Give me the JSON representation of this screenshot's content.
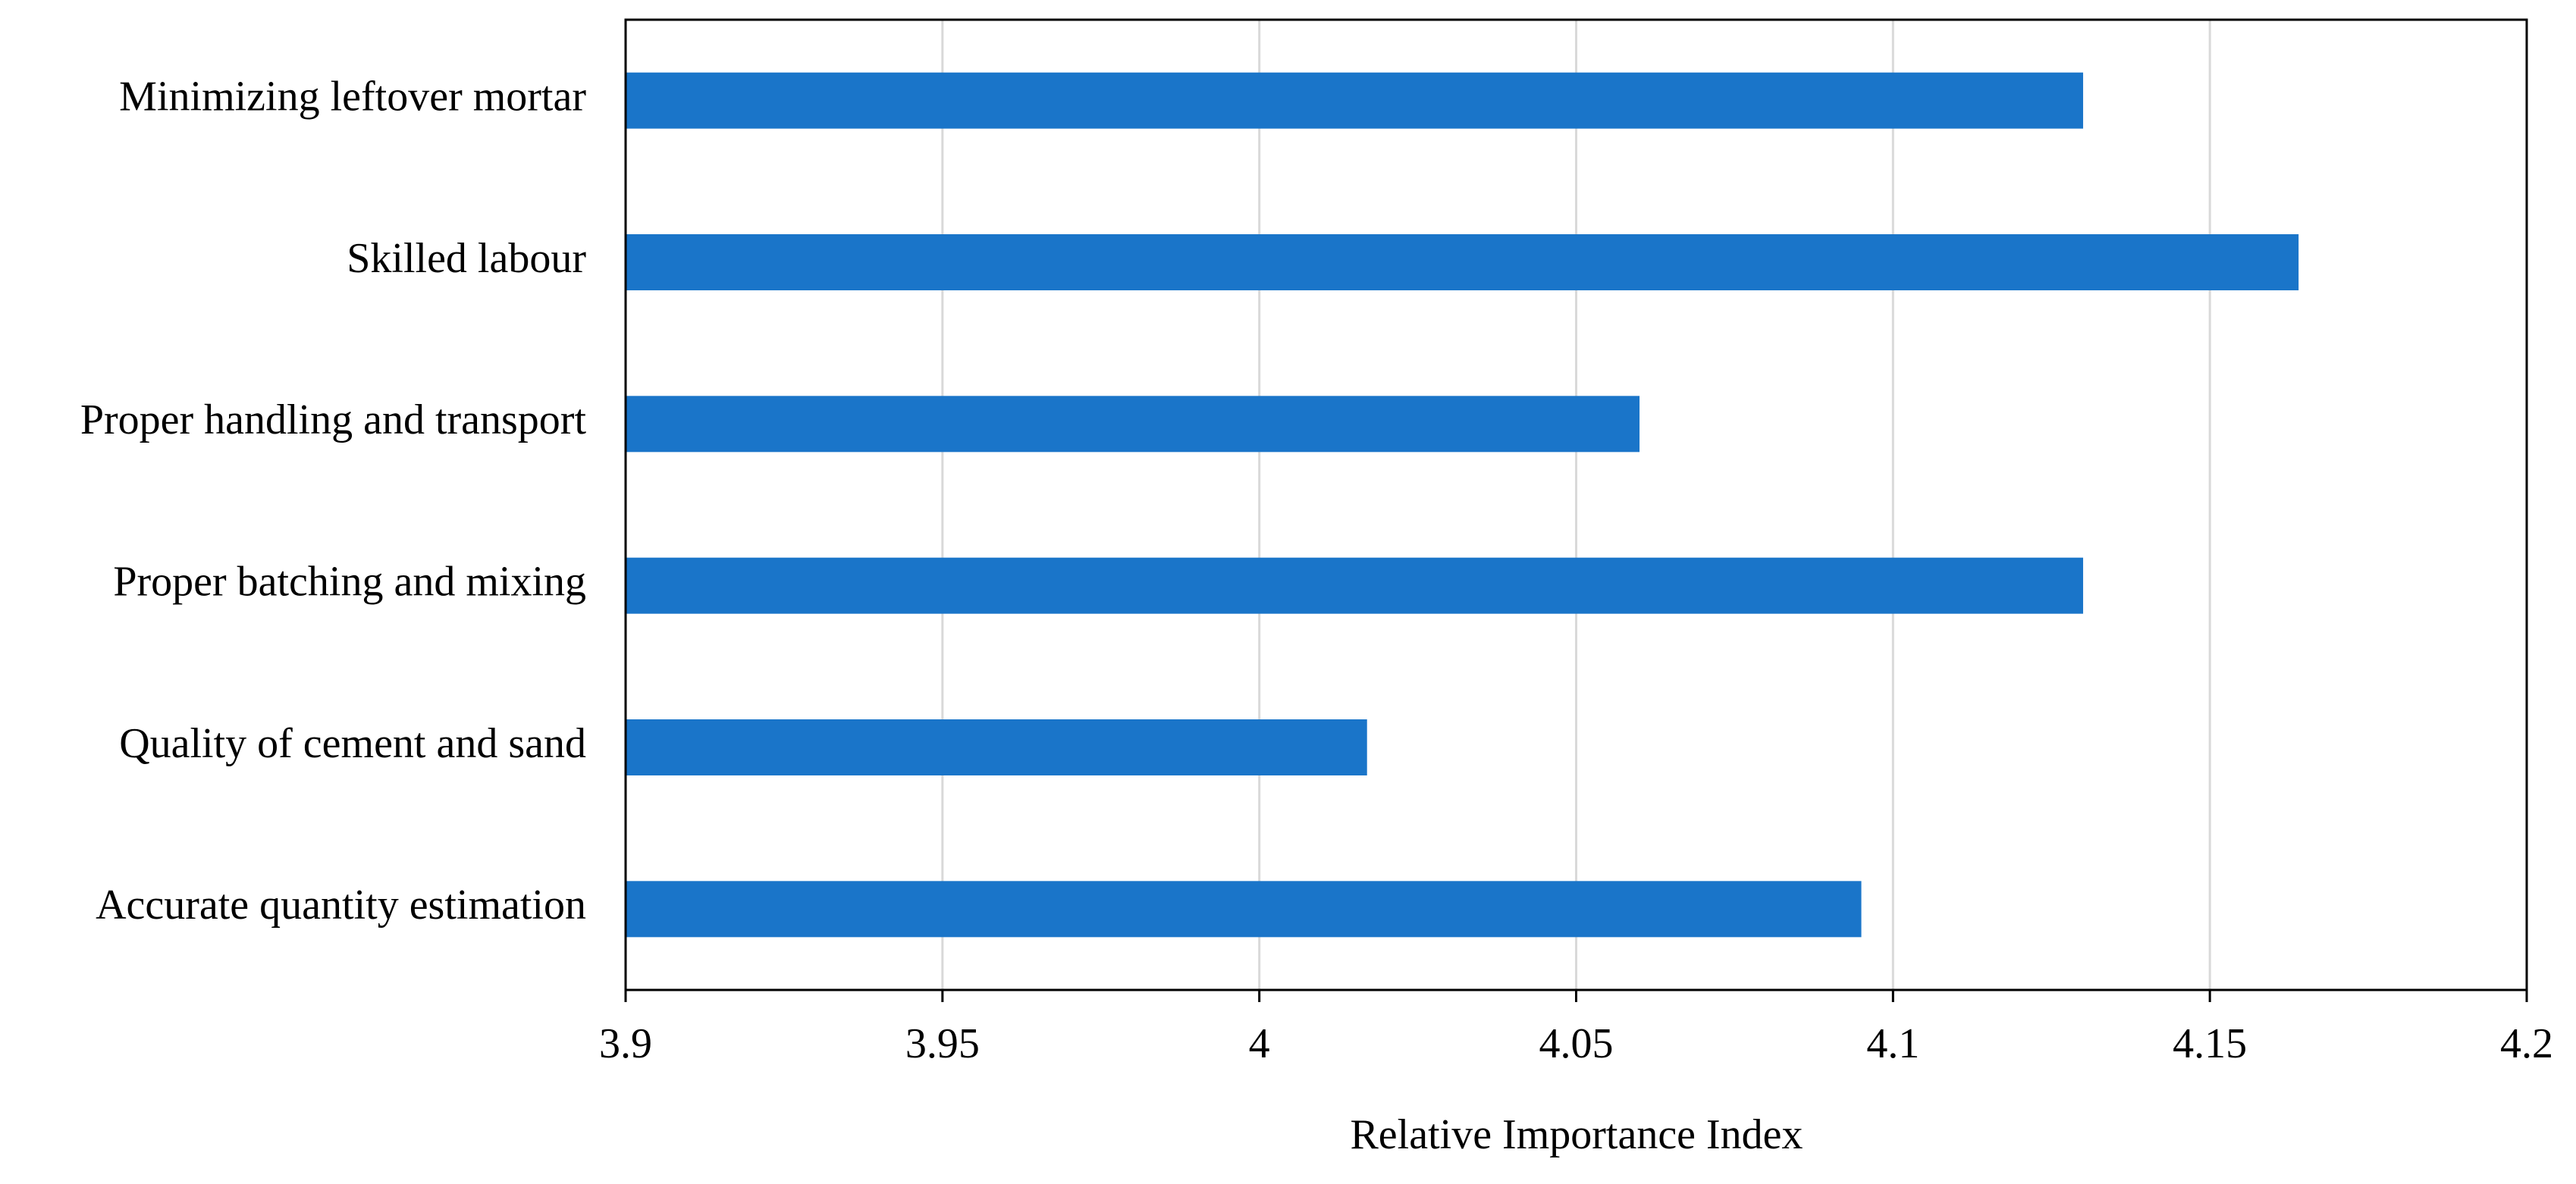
{
  "chart_data": {
    "type": "barh",
    "x_label": "Relative Importance Index",
    "categories": [
      "Minimizing leftover mortar",
      "Skilled labour",
      "Proper handling and transport",
      "Proper batching and mixing",
      "Quality of cement and sand",
      "Accurate quantity estimation"
    ],
    "values": [
      4.13,
      4.164,
      4.06,
      4.13,
      4.017,
      4.095
    ],
    "color": "#1a75c9",
    "xlim": [
      3.9,
      4.2
    ],
    "xticks": [
      3.9,
      3.95,
      4,
      4.05,
      4.1,
      4.15,
      4.2
    ],
    "grid": true
  }
}
